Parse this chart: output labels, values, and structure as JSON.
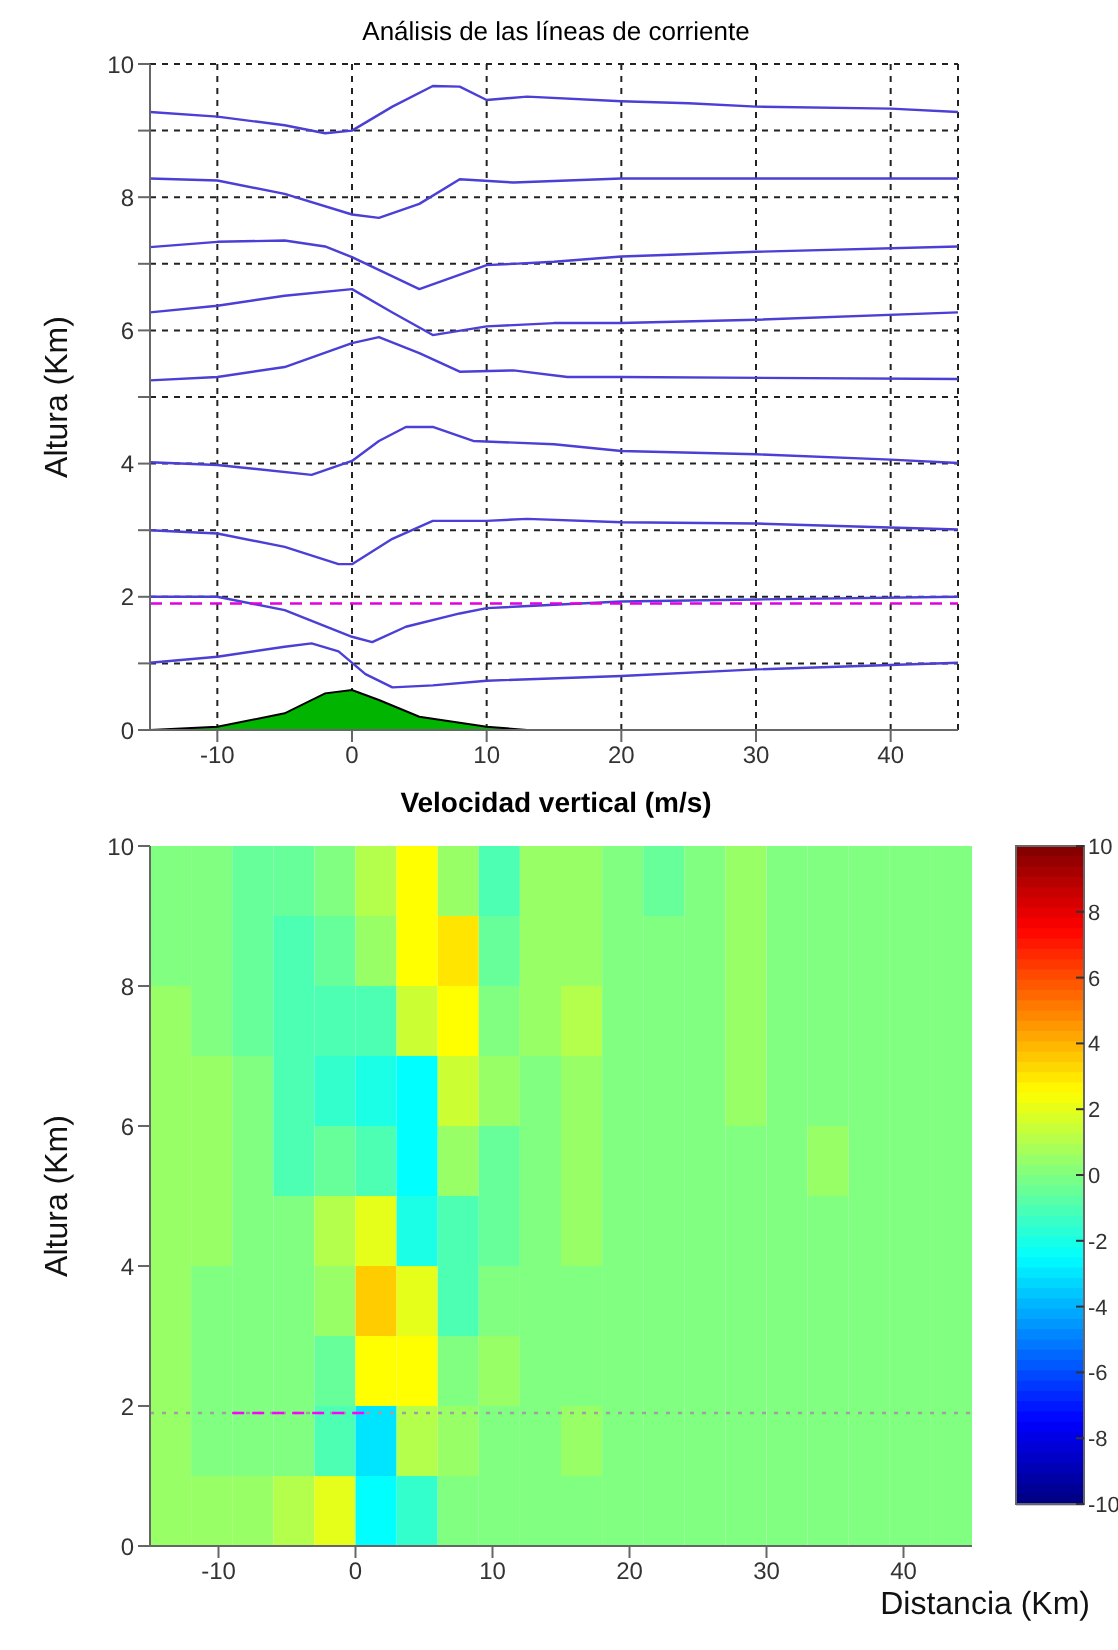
{
  "chart_data": [
    {
      "type": "line",
      "title": "Análisis de las líneas de corriente",
      "ylabel": "Altura (Km)",
      "xlim": [
        -15,
        45
      ],
      "xticks": [
        -10,
        0,
        10,
        20,
        30,
        40
      ],
      "ylim": [
        0,
        10
      ],
      "yticks": [
        0,
        {
          "value": 1,
          "label": null
        },
        2,
        {
          "value": 3,
          "label": null
        },
        4,
        {
          "value": 5,
          "label": null
        },
        6,
        {
          "value": 7,
          "label": null
        },
        8,
        {
          "value": 9,
          "label": null
        },
        10
      ],
      "grid": true,
      "ref_lines": [
        {
          "axis": "y",
          "value": 1.9,
          "color": "#e000e0",
          "line_style": "dashed"
        }
      ],
      "series": [
        {
          "type": "area",
          "color": "#00b400",
          "x": [
            -15,
            -10,
            -5,
            -2,
            0,
            2,
            5,
            10,
            13
          ],
          "values": [
            0,
            0.05,
            0.25,
            0.55,
            0.6,
            0.45,
            0.2,
            0.05,
            0
          ]
        },
        {
          "color": "#4b3fd6",
          "x": [
            -15,
            -10,
            -5,
            -2,
            0,
            3,
            6,
            8,
            10,
            13,
            20,
            25,
            30,
            40,
            45
          ],
          "values": [
            9.28,
            9.21,
            9.08,
            8.96,
            9.0,
            9.36,
            9.67,
            9.66,
            9.46,
            9.51,
            9.44,
            9.41,
            9.36,
            9.33,
            9.28
          ]
        },
        {
          "color": "#4b3fd6",
          "x": [
            -15,
            -10,
            -5,
            0,
            2,
            5,
            8,
            12,
            20,
            30,
            45
          ],
          "values": [
            8.28,
            8.25,
            8.05,
            7.74,
            7.69,
            7.9,
            8.27,
            8.22,
            8.28,
            8.28,
            8.28
          ]
        },
        {
          "color": "#4b3fd6",
          "x": [
            -15,
            -10,
            -5,
            -2,
            0,
            5,
            10,
            15,
            20,
            30,
            45
          ],
          "values": [
            7.25,
            7.33,
            7.35,
            7.26,
            7.1,
            6.62,
            6.98,
            7.03,
            7.11,
            7.18,
            7.26
          ]
        },
        {
          "color": "#4b3fd6",
          "x": [
            -15,
            -10,
            -5,
            0,
            3,
            6,
            10,
            15,
            20,
            30,
            45
          ],
          "values": [
            6.27,
            6.37,
            6.52,
            6.62,
            6.27,
            5.93,
            6.06,
            6.11,
            6.11,
            6.16,
            6.27
          ]
        },
        {
          "color": "#4b3fd6",
          "x": [
            -15,
            -10,
            -5,
            0,
            2,
            5,
            8,
            12,
            16,
            20,
            45
          ],
          "values": [
            5.25,
            5.3,
            5.45,
            5.81,
            5.9,
            5.66,
            5.38,
            5.4,
            5.3,
            5.3,
            5.27
          ]
        },
        {
          "color": "#4b3fd6",
          "x": [
            -15,
            -10,
            -3,
            0,
            2,
            4,
            6,
            9,
            15,
            20,
            30,
            40,
            45
          ],
          "values": [
            4.02,
            3.98,
            3.83,
            4.04,
            4.34,
            4.55,
            4.55,
            4.34,
            4.29,
            4.19,
            4.14,
            4.06,
            4.01
          ]
        },
        {
          "color": "#4b3fd6",
          "x": [
            -15,
            -10,
            -5,
            -1,
            0,
            3,
            6,
            10,
            13,
            20,
            30,
            45
          ],
          "values": [
            3.0,
            2.95,
            2.75,
            2.49,
            2.49,
            2.87,
            3.14,
            3.14,
            3.17,
            3.12,
            3.1,
            3.01
          ]
        },
        {
          "color": "#4b3fd6",
          "x": [
            -15,
            -10,
            -5,
            0,
            1.5,
            4,
            8,
            10,
            20,
            30,
            45
          ],
          "values": [
            2.0,
            2.0,
            1.8,
            1.4,
            1.32,
            1.55,
            1.75,
            1.83,
            1.93,
            1.96,
            2.0
          ]
        },
        {
          "color": "#4b3fd6",
          "x": [
            -15,
            -10,
            -5,
            -3,
            -1,
            1,
            3,
            6,
            10,
            20,
            30,
            45
          ],
          "values": [
            1.01,
            1.1,
            1.25,
            1.3,
            1.18,
            0.84,
            0.64,
            0.67,
            0.74,
            0.81,
            0.91,
            1.01
          ]
        }
      ]
    },
    {
      "type": "heatmap",
      "title": "Velocidad vertical (m/s)",
      "xlabel": "Distancia (Km)",
      "ylabel": "Altura (Km)",
      "xlim": [
        -15,
        45
      ],
      "xticks": [
        -10,
        0,
        10,
        20,
        30,
        40
      ],
      "ylim": [
        0,
        10
      ],
      "yticks": [
        0,
        2,
        4,
        6,
        8,
        10
      ],
      "clim": [
        -10,
        10
      ],
      "cticks": [
        -10,
        -8,
        -6,
        -4,
        -2,
        0,
        2,
        4,
        6,
        8,
        10
      ],
      "x": [
        -13.5,
        -10.5,
        -7.5,
        -4.5,
        -1.5,
        1.5,
        4.5,
        7.5,
        10.5,
        13.5,
        16.5,
        19.5,
        22.5,
        25.5,
        28.5,
        31.5,
        34.5,
        37.5,
        40.5,
        43.5
      ],
      "cells": [
        [
          0,
          0,
          -0.5,
          -0.5,
          0,
          1,
          2.5,
          0.5,
          -1,
          0.5,
          0.5,
          0,
          -0.5,
          0,
          0.5,
          0,
          0,
          0,
          0,
          0
        ],
        [
          0,
          0,
          -0.5,
          -1,
          -0.5,
          0.5,
          2.5,
          3,
          -0.5,
          0.5,
          0.5,
          0,
          0,
          0,
          0.5,
          0,
          0,
          0,
          0,
          0
        ],
        [
          0.5,
          0,
          -0.5,
          -1,
          -1,
          -1,
          1.5,
          2.5,
          0,
          0.5,
          1,
          0,
          0,
          0,
          0.5,
          0,
          0,
          0,
          0,
          0
        ],
        [
          0.5,
          0.5,
          0,
          -1,
          -1.5,
          -2,
          -2.5,
          1.5,
          0.5,
          0,
          0.5,
          0,
          0,
          0,
          0.5,
          0,
          0,
          0,
          0,
          0
        ],
        [
          0.5,
          0.5,
          0,
          -1,
          -0.5,
          -1,
          -2.5,
          0.5,
          -0.5,
          0,
          0.5,
          0,
          0,
          0,
          0,
          0,
          0.5,
          0,
          0,
          0
        ],
        [
          0.5,
          0.5,
          0,
          0,
          1,
          2,
          -2,
          -1,
          -0.5,
          0,
          0.5,
          0,
          0,
          0,
          0,
          0,
          0,
          0,
          0,
          0
        ],
        [
          0.5,
          0,
          0,
          0,
          0.5,
          3.5,
          2,
          -1,
          0,
          0,
          0,
          0,
          0,
          0,
          0,
          0,
          0,
          0,
          0,
          0
        ],
        [
          0.5,
          0,
          0,
          0,
          -0.5,
          2.5,
          2.5,
          0,
          0.5,
          0,
          0,
          0,
          0,
          0,
          0,
          0,
          0,
          0,
          0,
          0
        ],
        [
          0.5,
          0,
          0,
          0,
          -1,
          -3,
          1,
          0.5,
          0,
          0,
          0.5,
          0,
          0,
          0,
          0,
          0,
          0,
          0,
          0,
          0
        ],
        [
          0.5,
          0.5,
          0.5,
          1,
          2,
          -2.5,
          -1.5,
          0,
          0,
          0,
          0,
          0,
          0,
          0,
          0,
          0,
          0,
          0,
          0,
          0
        ]
      ],
      "ref_lines": [
        {
          "axis": "y",
          "value": 1.9,
          "color": "#a0a0a0",
          "line_style": "dotted"
        }
      ],
      "series": [
        {
          "type": "line",
          "color": "#ff00ff",
          "line_style": "dashed",
          "x": [
            -9,
            1
          ],
          "values": [
            1.9,
            1.9
          ]
        }
      ]
    }
  ]
}
